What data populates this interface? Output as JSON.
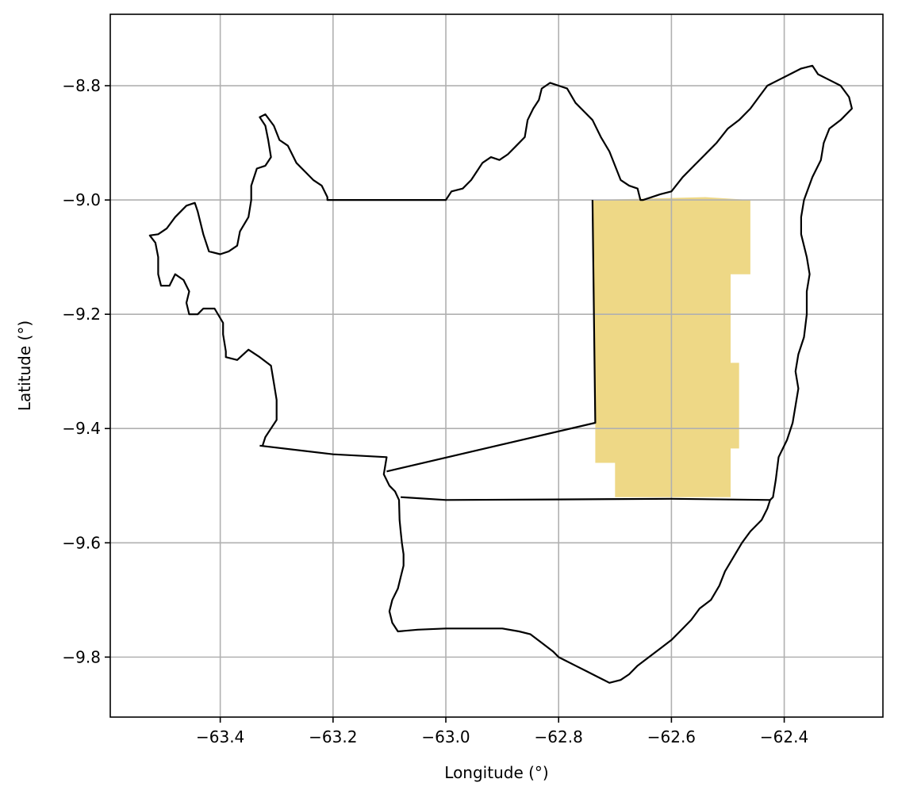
{
  "chart_data": {
    "type": "map",
    "xlabel": "Longitude (°)",
    "ylabel": "Latitude (°)",
    "xlim": [
      -63.595,
      -62.225
    ],
    "ylim": [
      -9.905,
      -8.675
    ],
    "xticks": [
      -63.4,
      -63.2,
      -63.0,
      -62.8,
      -62.6,
      -62.4
    ],
    "yticks": [
      -8.8,
      -9.0,
      -9.2,
      -9.4,
      -9.6,
      -9.8
    ],
    "xtick_labels": [
      "−63.4",
      "−63.2",
      "−63.0",
      "−62.8",
      "−62.6",
      "−62.4"
    ],
    "ytick_labels": [
      "−8.8",
      "−9.0",
      "−9.2",
      "−9.4",
      "−9.6",
      "−9.8"
    ],
    "grid": true,
    "highlight_color": "#eed886",
    "boundary_color": "#000000",
    "region_outline": [
      [
        -63.525,
        -9.062
      ],
      [
        -63.515,
        -9.075
      ],
      [
        -63.51,
        -9.1
      ],
      [
        -63.51,
        -9.13
      ],
      [
        -63.505,
        -9.15
      ],
      [
        -63.49,
        -9.15
      ],
      [
        -63.48,
        -9.13
      ],
      [
        -63.465,
        -9.14
      ],
      [
        -63.455,
        -9.16
      ],
      [
        -63.46,
        -9.18
      ],
      [
        -63.455,
        -9.2
      ],
      [
        -63.44,
        -9.2
      ],
      [
        -63.43,
        -9.19
      ],
      [
        -63.41,
        -9.19
      ],
      [
        -63.395,
        -9.215
      ],
      [
        -63.395,
        -9.235
      ],
      [
        -63.39,
        -9.265
      ],
      [
        -63.39,
        -9.275
      ],
      [
        -63.37,
        -9.28
      ],
      [
        -63.35,
        -9.262
      ],
      [
        -63.33,
        -9.275
      ],
      [
        -63.31,
        -9.29
      ],
      [
        -63.305,
        -9.32
      ],
      [
        -63.3,
        -9.35
      ],
      [
        -63.3,
        -9.385
      ],
      [
        -63.31,
        -9.4
      ],
      [
        -63.32,
        -9.415
      ],
      [
        -63.325,
        -9.43
      ]
    ],
    "region_outline_west_north": [
      [
        -63.525,
        -9.062
      ],
      [
        -63.51,
        -9.06
      ],
      [
        -63.495,
        -9.05
      ],
      [
        -63.48,
        -9.03
      ],
      [
        -63.46,
        -9.01
      ],
      [
        -63.445,
        -9.005
      ],
      [
        -63.44,
        -9.02
      ],
      [
        -63.43,
        -9.06
      ],
      [
        -63.42,
        -9.09
      ],
      [
        -63.4,
        -9.095
      ],
      [
        -63.385,
        -9.09
      ],
      [
        -63.37,
        -9.08
      ],
      [
        -63.365,
        -9.055
      ],
      [
        -63.35,
        -9.03
      ],
      [
        -63.345,
        -9.0
      ],
      [
        -63.345,
        -8.975
      ],
      [
        -63.335,
        -8.945
      ],
      [
        -63.32,
        -8.94
      ],
      [
        -63.31,
        -8.925
      ],
      [
        -63.315,
        -8.895
      ],
      [
        -63.32,
        -8.87
      ],
      [
        -63.33,
        -8.855
      ],
      [
        -63.32,
        -8.85
      ],
      [
        -63.305,
        -8.87
      ],
      [
        -63.295,
        -8.895
      ],
      [
        -63.28,
        -8.905
      ],
      [
        -63.265,
        -8.935
      ],
      [
        -63.25,
        -8.95
      ],
      [
        -63.235,
        -8.965
      ],
      [
        -63.22,
        -8.975
      ],
      [
        -63.21,
        -8.995
      ],
      [
        -63.21,
        -9.0
      ]
    ],
    "region_outline_north": [
      [
        -63.21,
        -9.0
      ],
      [
        -63.0,
        -9.0
      ],
      [
        -62.99,
        -8.985
      ],
      [
        -62.97,
        -8.98
      ],
      [
        -62.955,
        -8.965
      ],
      [
        -62.945,
        -8.95
      ],
      [
        -62.935,
        -8.935
      ],
      [
        -62.92,
        -8.925
      ],
      [
        -62.905,
        -8.93
      ],
      [
        -62.89,
        -8.92
      ],
      [
        -62.875,
        -8.905
      ],
      [
        -62.86,
        -8.89
      ],
      [
        -62.855,
        -8.86
      ],
      [
        -62.845,
        -8.84
      ],
      [
        -62.835,
        -8.825
      ],
      [
        -62.83,
        -8.805
      ],
      [
        -62.815,
        -8.795
      ],
      [
        -62.8,
        -8.8
      ],
      [
        -62.785,
        -8.805
      ],
      [
        -62.77,
        -8.83
      ],
      [
        -62.755,
        -8.845
      ],
      [
        -62.74,
        -8.86
      ],
      [
        -62.725,
        -8.89
      ],
      [
        -62.71,
        -8.915
      ],
      [
        -62.7,
        -8.94
      ],
      [
        -62.69,
        -8.965
      ],
      [
        -62.675,
        -8.975
      ],
      [
        -62.66,
        -8.98
      ],
      [
        -62.655,
        -9.0
      ],
      [
        -62.65,
        -9.0
      ]
    ],
    "region_outline_east": [
      [
        -62.65,
        -9.0
      ],
      [
        -62.62,
        -8.99
      ],
      [
        -62.6,
        -8.985
      ],
      [
        -62.58,
        -8.96
      ],
      [
        -62.56,
        -8.94
      ],
      [
        -62.54,
        -8.92
      ],
      [
        -62.52,
        -8.9
      ],
      [
        -62.5,
        -8.875
      ],
      [
        -62.48,
        -8.86
      ],
      [
        -62.46,
        -8.84
      ],
      [
        -62.445,
        -8.82
      ],
      [
        -62.43,
        -8.8
      ],
      [
        -62.41,
        -8.79
      ],
      [
        -62.39,
        -8.78
      ],
      [
        -62.37,
        -8.77
      ],
      [
        -62.35,
        -8.765
      ],
      [
        -62.34,
        -8.78
      ],
      [
        -62.32,
        -8.79
      ],
      [
        -62.3,
        -8.8
      ],
      [
        -62.285,
        -8.82
      ],
      [
        -62.28,
        -8.84
      ],
      [
        -62.3,
        -8.86
      ],
      [
        -62.32,
        -8.875
      ],
      [
        -62.33,
        -8.9
      ],
      [
        -62.335,
        -8.93
      ],
      [
        -62.35,
        -8.96
      ],
      [
        -62.365,
        -9.0
      ],
      [
        -62.37,
        -9.03
      ],
      [
        -62.37,
        -9.06
      ],
      [
        -62.36,
        -9.1
      ],
      [
        -62.355,
        -9.13
      ],
      [
        -62.36,
        -9.16
      ],
      [
        -62.36,
        -9.2
      ],
      [
        -62.365,
        -9.24
      ],
      [
        -62.375,
        -9.27
      ],
      [
        -62.38,
        -9.3
      ],
      [
        -62.375,
        -9.33
      ],
      [
        -62.38,
        -9.36
      ],
      [
        -62.385,
        -9.39
      ],
      [
        -62.395,
        -9.42
      ],
      [
        -62.41,
        -9.45
      ],
      [
        -62.415,
        -9.49
      ],
      [
        -62.42,
        -9.52
      ],
      [
        -62.425,
        -9.525
      ]
    ],
    "region_outline_south": [
      [
        -62.425,
        -9.525
      ],
      [
        -62.43,
        -9.54
      ],
      [
        -62.44,
        -9.56
      ],
      [
        -62.46,
        -9.58
      ],
      [
        -62.475,
        -9.6
      ],
      [
        -62.49,
        -9.625
      ],
      [
        -62.505,
        -9.65
      ],
      [
        -62.515,
        -9.675
      ],
      [
        -62.53,
        -9.7
      ],
      [
        -62.55,
        -9.715
      ],
      [
        -62.565,
        -9.735
      ],
      [
        -62.585,
        -9.755
      ],
      [
        -62.6,
        -9.77
      ],
      [
        -62.62,
        -9.785
      ],
      [
        -62.64,
        -9.8
      ],
      [
        -62.66,
        -9.815
      ],
      [
        -62.675,
        -9.83
      ],
      [
        -62.69,
        -9.84
      ],
      [
        -62.71,
        -9.845
      ],
      [
        -62.73,
        -9.835
      ],
      [
        -62.75,
        -9.825
      ],
      [
        -62.77,
        -9.815
      ],
      [
        -62.79,
        -9.805
      ],
      [
        -62.8,
        -9.8
      ],
      [
        -62.81,
        -9.79
      ],
      [
        -62.83,
        -9.775
      ],
      [
        -62.85,
        -9.76
      ],
      [
        -62.87,
        -9.755
      ],
      [
        -62.9,
        -9.75
      ],
      [
        -62.95,
        -9.75
      ],
      [
        -63.0,
        -9.75
      ],
      [
        -63.05,
        -9.752
      ],
      [
        -63.085,
        -9.755
      ],
      [
        -63.095,
        -9.74
      ],
      [
        -63.1,
        -9.72
      ],
      [
        -63.095,
        -9.7
      ],
      [
        -63.085,
        -9.68
      ],
      [
        -63.08,
        -9.66
      ],
      [
        -63.075,
        -9.64
      ],
      [
        -63.075,
        -9.62
      ],
      [
        -63.078,
        -9.6
      ],
      [
        -63.08,
        -9.58
      ],
      [
        -63.082,
        -9.56
      ],
      [
        -63.083,
        -9.525
      ]
    ],
    "region_outline_southwest": [
      [
        -63.083,
        -9.525
      ],
      [
        -63.09,
        -9.51
      ],
      [
        -63.1,
        -9.5
      ],
      [
        -63.11,
        -9.48
      ],
      [
        -63.105,
        -9.45
      ],
      [
        -63.2,
        -9.445
      ],
      [
        -63.33,
        -9.43
      ]
    ],
    "internal_boundaries": [
      [
        [
          -63.105,
          -9.475
        ],
        [
          -62.735,
          -9.39
        ],
        [
          -62.74,
          -9.0
        ]
      ],
      [
        [
          -63.08,
          -9.52
        ],
        [
          -63.0,
          -9.525
        ],
        [
          -62.8,
          -9.524
        ],
        [
          -62.6,
          -9.523
        ],
        [
          -62.425,
          -9.525
        ]
      ]
    ],
    "highlight_polygon": [
      [
        -62.74,
        -9.0
      ],
      [
        -62.54,
        -8.995
      ],
      [
        -62.46,
        -9.0
      ],
      [
        -62.46,
        -9.13
      ],
      [
        -62.495,
        -9.13
      ],
      [
        -62.495,
        -9.285
      ],
      [
        -62.48,
        -9.285
      ],
      [
        -62.48,
        -9.435
      ],
      [
        -62.495,
        -9.435
      ],
      [
        -62.495,
        -9.52
      ],
      [
        -62.7,
        -9.52
      ],
      [
        -62.7,
        -9.46
      ],
      [
        -62.735,
        -9.46
      ],
      [
        -62.735,
        -9.39
      ],
      [
        -62.74,
        -9.0
      ]
    ]
  }
}
